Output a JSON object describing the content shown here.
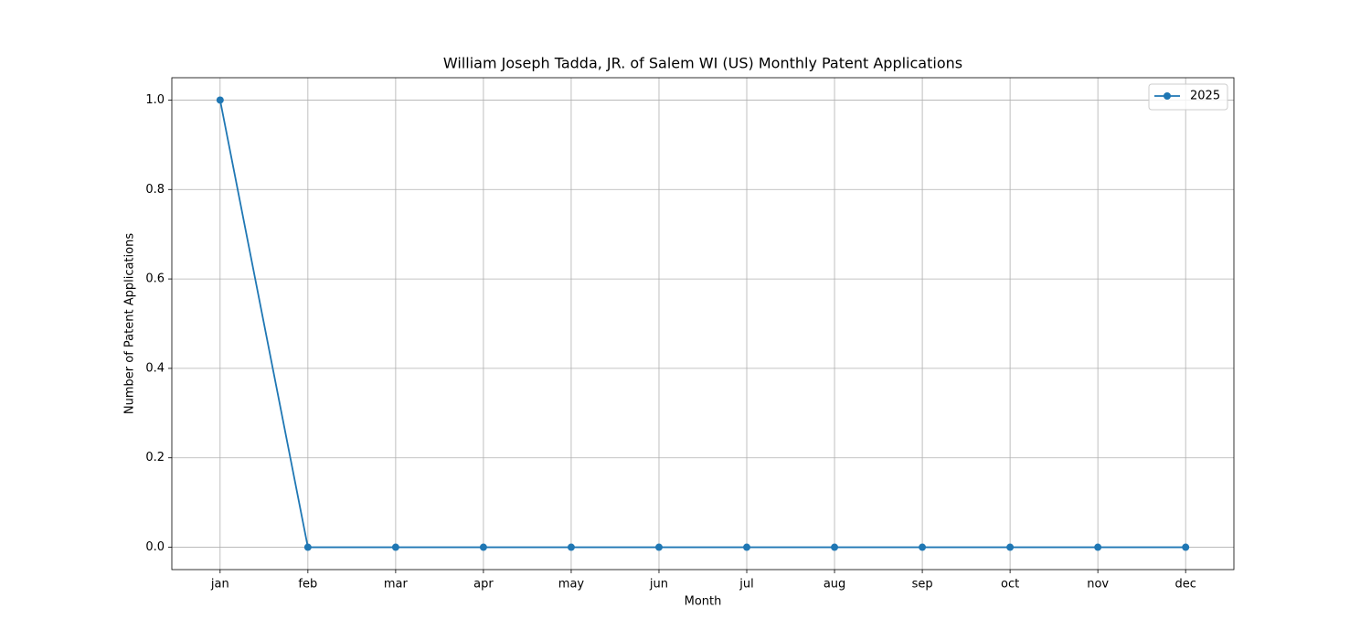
{
  "chart_data": {
    "type": "line",
    "title": "William Joseph Tadda, JR. of Salem WI (US) Monthly Patent Applications",
    "x_label": "Month",
    "y_label": "Number of Patent Applications",
    "categories": [
      "jan",
      "feb",
      "mar",
      "apr",
      "may",
      "jun",
      "jul",
      "aug",
      "sep",
      "oct",
      "nov",
      "dec"
    ],
    "series": [
      {
        "name": "2025",
        "color": "#1f77b4",
        "values": [
          1,
          0,
          0,
          0,
          0,
          0,
          0,
          0,
          0,
          0,
          0,
          0
        ]
      }
    ],
    "ylim": [
      -0.05,
      1.05
    ],
    "yticks": [
      {
        "value": 0,
        "label": "0.0"
      },
      0.2,
      0.4,
      0.6,
      0.8,
      {
        "value": 1,
        "label": "1.0"
      }
    ],
    "grid": true,
    "legend": "upper-right"
  }
}
